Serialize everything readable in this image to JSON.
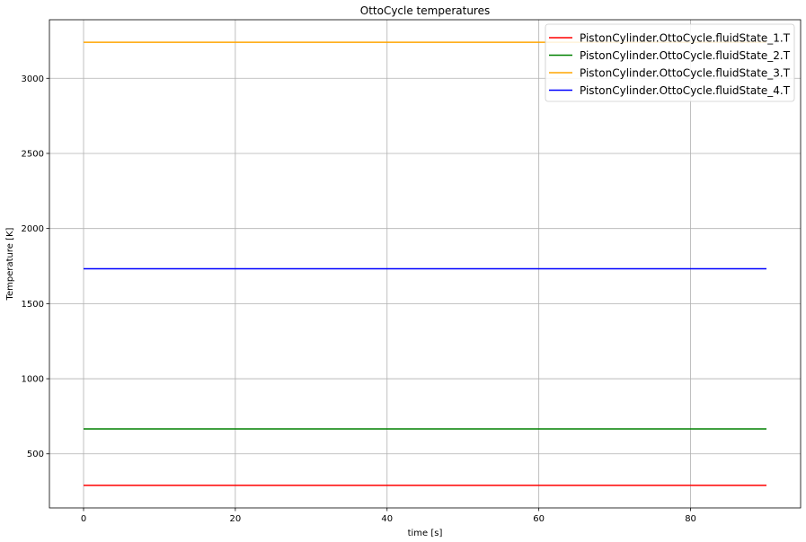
{
  "chart_data": {
    "type": "line",
    "title": "OttoCycle temperatures",
    "xlabel": "time [s]",
    "ylabel": "Temperature [K]",
    "xlim": [
      -4.5,
      94.5
    ],
    "ylim": [
      140,
      3390
    ],
    "xticks": [
      0,
      20,
      40,
      60,
      80
    ],
    "yticks": [
      500,
      1000,
      1500,
      2000,
      2500,
      3000
    ],
    "grid": true,
    "legend_position": "top-right",
    "series": [
      {
        "name": "PistonCylinder.OttoCycle.fluidState_1.T",
        "color": "#ff0000",
        "x": [
          0,
          90
        ],
        "y": [
          290,
          290
        ]
      },
      {
        "name": "PistonCylinder.OttoCycle.fluidState_2.T",
        "color": "#008000",
        "x": [
          0,
          90
        ],
        "y": [
          666,
          666
        ]
      },
      {
        "name": "PistonCylinder.OttoCycle.fluidState_3.T",
        "color": "#ffa500",
        "x": [
          0,
          90
        ],
        "y": [
          3240,
          3240
        ]
      },
      {
        "name": "PistonCylinder.OttoCycle.fluidState_4.T",
        "color": "#0000ff",
        "x": [
          0,
          90
        ],
        "y": [
          1732,
          1732
        ]
      }
    ]
  }
}
